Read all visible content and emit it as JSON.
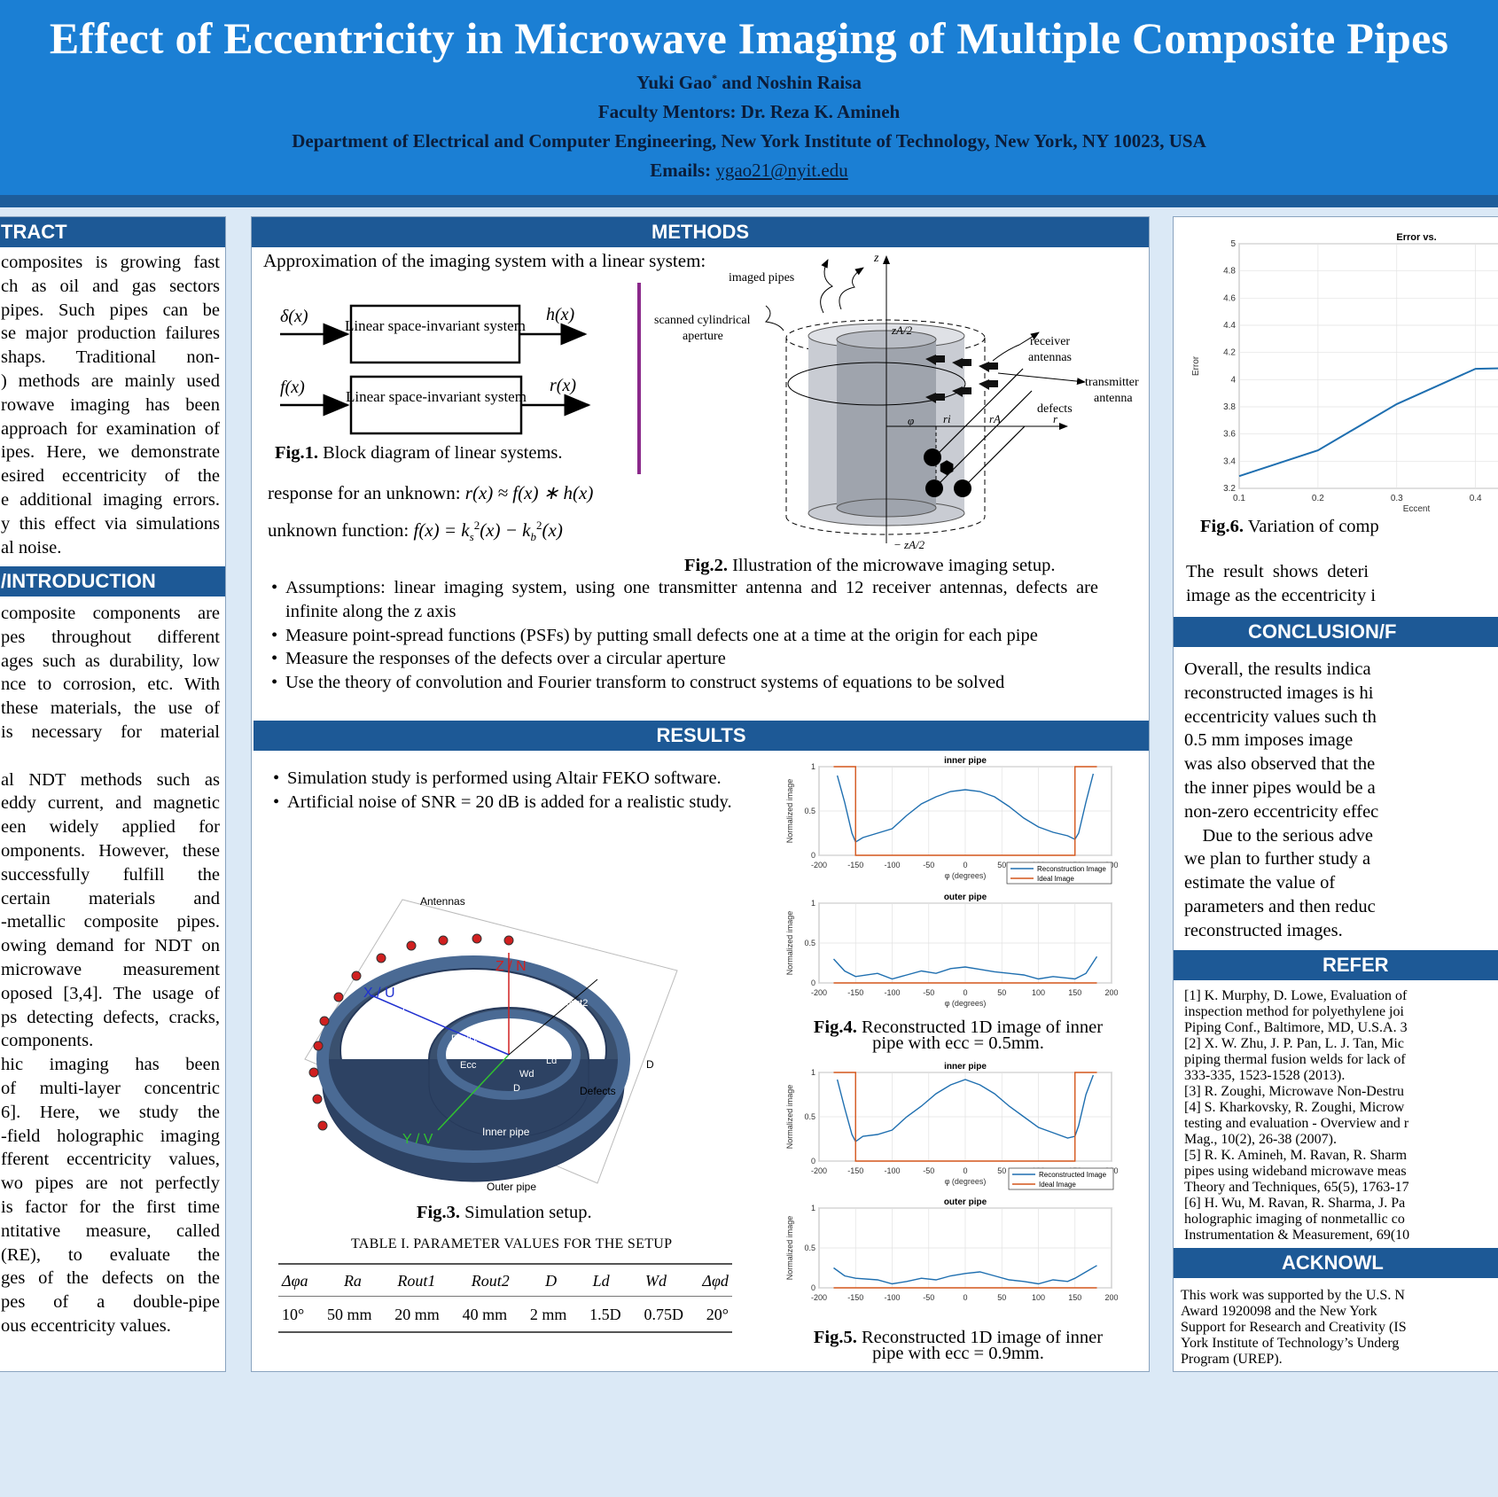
{
  "header": {
    "title": "Effect of Eccentricity in Microwave Imaging of Multiple Composite Pipes",
    "authors": "Yuki Gao",
    "authors_sup": "*",
    "authors_rest": " and Noshin Raisa",
    "mentors": "Faculty Mentors:  Dr. Reza K. Amineh",
    "department": "Department of Electrical and Computer Engineering, New York Institute of Technology, New York, NY 10023, USA",
    "emails_label": "Emails: ",
    "email": "ygao21@nyit.edu"
  },
  "abstract": {
    "heading": "TRACT",
    "lines": [
      "composites is growing fast",
      "ch as oil and gas sectors",
      "pipes. Such pipes can be",
      "se major production failures",
      "shaps.   Traditional   non-",
      ") methods are mainly used",
      "rowave imaging has been",
      "approach for examination of",
      "ipes. Here, we demonstrate",
      "esired eccentricity of the",
      "e additional imaging errors.",
      "y this effect via simulations",
      "al noise."
    ]
  },
  "intro": {
    "heading": "/INTRODUCTION",
    "lines": [
      "composite components are",
      "pes throughout different",
      "ages such as durability, low",
      "nce to corrosion, etc. With",
      "these materials, the use of",
      "is necessary for material",
      "",
      "al NDT methods such as",
      "eddy current, and magnetic",
      "een widely applied for",
      "omponents. However, these",
      "successfully fulfill the",
      "certain materials and",
      "-metallic composite pipes.",
      "owing demand for NDT on",
      "microwave measurement",
      "oposed [3,4]. The usage of",
      "ps detecting defects, cracks,",
      "components.",
      "hic imaging has been",
      "of multi-layer concentric",
      "6]. Here, we study the",
      "-field holographic imaging",
      "fferent eccentricity values,",
      "wo pipes are not perfectly",
      "is factor for the first time",
      "ntitative measure, called",
      "(RE), to evaluate the",
      "ges of the defects on the",
      "pes of a double-pipe",
      "ous eccentricity values."
    ]
  },
  "methods": {
    "heading": "METHODS",
    "intro": "Approximation of the imaging system with a linear system:",
    "block_label": "Linear space-invariant system",
    "in1": "δ(x)",
    "out1": "h(x)",
    "in2": "f(x)",
    "out2": "r(x)",
    "fig1_num": "Fig.1.",
    "fig1_text": " Block diagram of linear systems.",
    "eq1_label": "response for an unknown:",
    "eq1": "r(x) ≈ f(x) ∗ h(x)",
    "eq2_label": "unknown function:",
    "eq2": "f(x) = k",
    "fig2_labels": {
      "imaged": "imaged pipes",
      "scanned": "scanned cylindrical",
      "aperture": "aperture",
      "receiver": "receiver",
      "antennas": "antennas",
      "transmitter": "transmitter",
      "antenna": "antenna",
      "defects": "defects",
      "z": "z",
      "zA2": "zA/2",
      "mzA2": "− zA/2",
      "phi": "φ",
      "ri": "ri",
      "rA": "rA",
      "r": "r"
    },
    "fig2_num": "Fig.2.",
    "fig2_text": " Illustration of the microwave imaging setup.",
    "bullets": [
      "Assumptions: linear imaging system, using one transmitter antenna and 12 receiver antennas, defects are infinite along the z axis",
      "Measure point-spread functions (PSFs) by putting small defects one at a time at the origin for each pipe",
      "Measure the responses of the defects over a circular aperture",
      "Use the theory of convolution and Fourier transform to construct systems of equations to be solved"
    ]
  },
  "results": {
    "heading": "RESULTS",
    "bullets": [
      "Simulation study is performed using Altair FEKO software.",
      "Artificial noise of SNR = 20 dB is added for a realistic study."
    ],
    "fig3_labels": {
      "antennas": "Antennas",
      "zn": "Z / N",
      "xu": "X / U",
      "yv": "Y / V",
      "ra": "Ra",
      "rout1": "Rout1",
      "rout2": "Rout2",
      "ecc": "Ecc",
      "wd": "Wd",
      "ld": "Ld",
      "d": "D",
      "defects": "Defects",
      "inner": "Inner pipe",
      "outer": "Outer pipe"
    },
    "fig3_num": "Fig.3.",
    "fig3_text": " Simulation setup.",
    "table_title": "TABLE I. PARAMETER VALUES FOR THE SETUP",
    "table_head": [
      "Δφa",
      "Ra",
      "Rout1",
      "Rout2",
      "D",
      "Ld",
      "Wd",
      "Δφd"
    ],
    "table_vals": [
      "10°",
      "50 mm",
      "20 mm",
      "40 mm",
      "2 mm",
      "1.5D",
      "0.75D",
      "20°"
    ],
    "fig4_num": "Fig.4.",
    "fig4_text": " Reconstructed 1D image of inner pipe with ecc = 0.5mm.",
    "fig5_num": "Fig.5.",
    "fig5_text": " Reconstructed 1D image of inner pipe with ecc = 0.9mm."
  },
  "right": {
    "fig6_num": "Fig.6.",
    "fig6_text": " Variation of comp",
    "result_line1": "The  result  shows  deteri",
    "result_line2": "image as the eccentricity i",
    "conclusion_heading": "CONCLUSION/F",
    "conclusion_lines": [
      "Overall, the results indica",
      "reconstructed images is hi",
      "eccentricity values such th",
      "0.5 mm imposes image",
      "was also observed that the",
      "the inner pipes would be a",
      "non-zero eccentricity effec",
      "    Due to the serious adve",
      "we plan to further study a",
      "estimate the value of",
      "parameters and then reduc",
      "reconstructed images."
    ],
    "references_heading": "REFER",
    "references": [
      "[1] K. Murphy, D. Lowe, Evaluation of",
      "inspection method for polyethylene joi",
      "Piping Conf., Baltimore, MD, U.S.A. 3",
      "[2] X. W. Zhu, J. P. Pan, L. J. Tan, Mic",
      "piping thermal fusion welds for lack of",
      "333-335, 1523-1528 (2013).",
      "[3] R. Zoughi, Microwave Non-Destru",
      "[4] S. Kharkovsky, R. Zoughi, Microw",
      "testing and evaluation - Overview and r",
      "Mag., 10(2), 26-38 (2007).",
      "[5] R. K. Amineh, M. Ravan, R. Sharm",
      "pipes using wideband microwave meas",
      "Theory and Techniques, 65(5), 1763-17",
      "[6] H. Wu, M. Ravan, R. Sharma, J. Pa",
      "holographic imaging of nonmetallic co",
      "Instrumentation & Measurement, 69(10"
    ],
    "ack_heading": "ACKNOWL",
    "ack_lines": [
      "This work was supported by the U.S. N",
      "Award 1920098 and the New York",
      "Support for Research and Creativity (IS",
      "York Institute of Technology’s Underg",
      "Program (UREP)."
    ]
  },
  "chart_data": [
    {
      "type": "line",
      "title": "inner pipe",
      "xlabel": "φ (degrees)",
      "ylabel": "Normalized image",
      "xlim": [
        -200,
        200
      ],
      "ylim": [
        0,
        1
      ],
      "xticks": [
        -200,
        -150,
        -100,
        -50,
        0,
        50,
        100,
        150,
        200
      ],
      "yticks": [
        0,
        0.5,
        1
      ],
      "legend": [
        "Reconstruction Image",
        "Ideal Image"
      ],
      "series": [
        {
          "name": "Reconstruction Image",
          "color": "#1f6fb0",
          "x": [
            -175,
            -165,
            -155,
            -150,
            -140,
            -120,
            -100,
            -80,
            -60,
            -40,
            -20,
            0,
            20,
            40,
            60,
            80,
            100,
            120,
            140,
            150,
            155,
            165,
            175
          ],
          "values": [
            0.9,
            0.6,
            0.25,
            0.15,
            0.2,
            0.25,
            0.3,
            0.45,
            0.58,
            0.66,
            0.72,
            0.74,
            0.72,
            0.66,
            0.55,
            0.42,
            0.32,
            0.26,
            0.22,
            0.18,
            0.25,
            0.6,
            0.92
          ]
        },
        {
          "name": "Ideal Image",
          "color": "#d4561c",
          "x": [
            -180,
            -150,
            -150,
            150,
            150,
            180
          ],
          "values": [
            1,
            1,
            0,
            0,
            1,
            1
          ]
        }
      ]
    },
    {
      "type": "line",
      "title": "outer pipe",
      "xlabel": "φ (degrees)",
      "ylabel": "Normalized image",
      "xlim": [
        -200,
        200
      ],
      "ylim": [
        0,
        1
      ],
      "xticks": [
        -200,
        -150,
        -100,
        -50,
        0,
        50,
        100,
        150,
        200
      ],
      "yticks": [
        0,
        0.5,
        1
      ],
      "series": [
        {
          "name": "Reconstruction Image",
          "color": "#1f6fb0",
          "x": [
            -180,
            -165,
            -150,
            -120,
            -100,
            -80,
            -60,
            -40,
            -20,
            0,
            20,
            40,
            60,
            80,
            100,
            120,
            140,
            150,
            165,
            180
          ],
          "values": [
            0.3,
            0.15,
            0.08,
            0.12,
            0.05,
            0.1,
            0.15,
            0.12,
            0.18,
            0.2,
            0.17,
            0.14,
            0.12,
            0.1,
            0.05,
            0.08,
            0.06,
            0.05,
            0.12,
            0.33
          ]
        },
        {
          "name": "Ideal Image",
          "color": "#d4561c",
          "x": [
            -180,
            180
          ],
          "values": [
            0,
            0
          ]
        }
      ]
    },
    {
      "type": "line",
      "title": "inner pipe",
      "xlabel": "φ (degrees)",
      "ylabel": "Normalized image",
      "xlim": [
        -200,
        200
      ],
      "ylim": [
        0,
        1
      ],
      "xticks": [
        -200,
        -150,
        -100,
        -50,
        0,
        50,
        100,
        150,
        200
      ],
      "yticks": [
        0,
        0.5,
        1
      ],
      "legend": [
        "Reconstructed Image",
        "Ideal Image"
      ],
      "series": [
        {
          "name": "Reconstructed Image",
          "color": "#1f6fb0",
          "x": [
            -175,
            -165,
            -155,
            -150,
            -140,
            -120,
            -100,
            -80,
            -60,
            -40,
            -20,
            0,
            20,
            40,
            60,
            80,
            100,
            120,
            140,
            150,
            155,
            165,
            175
          ],
          "values": [
            0.92,
            0.6,
            0.3,
            0.22,
            0.28,
            0.3,
            0.35,
            0.5,
            0.62,
            0.76,
            0.86,
            0.92,
            0.86,
            0.76,
            0.62,
            0.5,
            0.38,
            0.32,
            0.26,
            0.28,
            0.4,
            0.75,
            0.97
          ]
        },
        {
          "name": "Ideal Image",
          "color": "#d4561c",
          "x": [
            -180,
            -150,
            -150,
            150,
            150,
            180
          ],
          "values": [
            1,
            1,
            0,
            0,
            1,
            1
          ]
        }
      ]
    },
    {
      "type": "line",
      "title": "outer pipe",
      "xlabel": "φ (degrees)",
      "ylabel": "Normalized image",
      "xlim": [
        -200,
        200
      ],
      "ylim": [
        0,
        1
      ],
      "xticks": [
        -200,
        -150,
        -100,
        -50,
        0,
        50,
        100,
        150,
        200
      ],
      "yticks": [
        0,
        0.5,
        1
      ],
      "series": [
        {
          "name": "Reconstructed Image",
          "color": "#1f6fb0",
          "x": [
            -180,
            -165,
            -150,
            -120,
            -100,
            -80,
            -60,
            -40,
            -20,
            0,
            20,
            40,
            60,
            80,
            100,
            120,
            140,
            150,
            165,
            180
          ],
          "values": [
            0.25,
            0.15,
            0.12,
            0.1,
            0.05,
            0.08,
            0.12,
            0.1,
            0.15,
            0.18,
            0.2,
            0.15,
            0.1,
            0.08,
            0.05,
            0.1,
            0.08,
            0.12,
            0.2,
            0.28
          ]
        },
        {
          "name": "Ideal Image",
          "color": "#d4561c",
          "x": [
            -180,
            180
          ],
          "values": [
            0,
            0
          ]
        }
      ]
    },
    {
      "type": "line",
      "title": "Error vs.",
      "xlabel": "Eccent",
      "ylabel": "Error",
      "xlim": [
        0.1,
        0.55
      ],
      "ylim": [
        3.2,
        5
      ],
      "xticks": [
        0.1,
        0.2,
        0.3,
        0.4
      ],
      "yticks": [
        3.2,
        3.4,
        3.6,
        3.8,
        4,
        4.2,
        4.4,
        4.6,
        4.8,
        5
      ],
      "series": [
        {
          "name": "",
          "color": "#1f6fb0",
          "x": [
            0.1,
            0.2,
            0.3,
            0.4,
            0.5
          ],
          "values": [
            3.29,
            3.48,
            3.82,
            4.08,
            4.09
          ]
        }
      ]
    }
  ]
}
